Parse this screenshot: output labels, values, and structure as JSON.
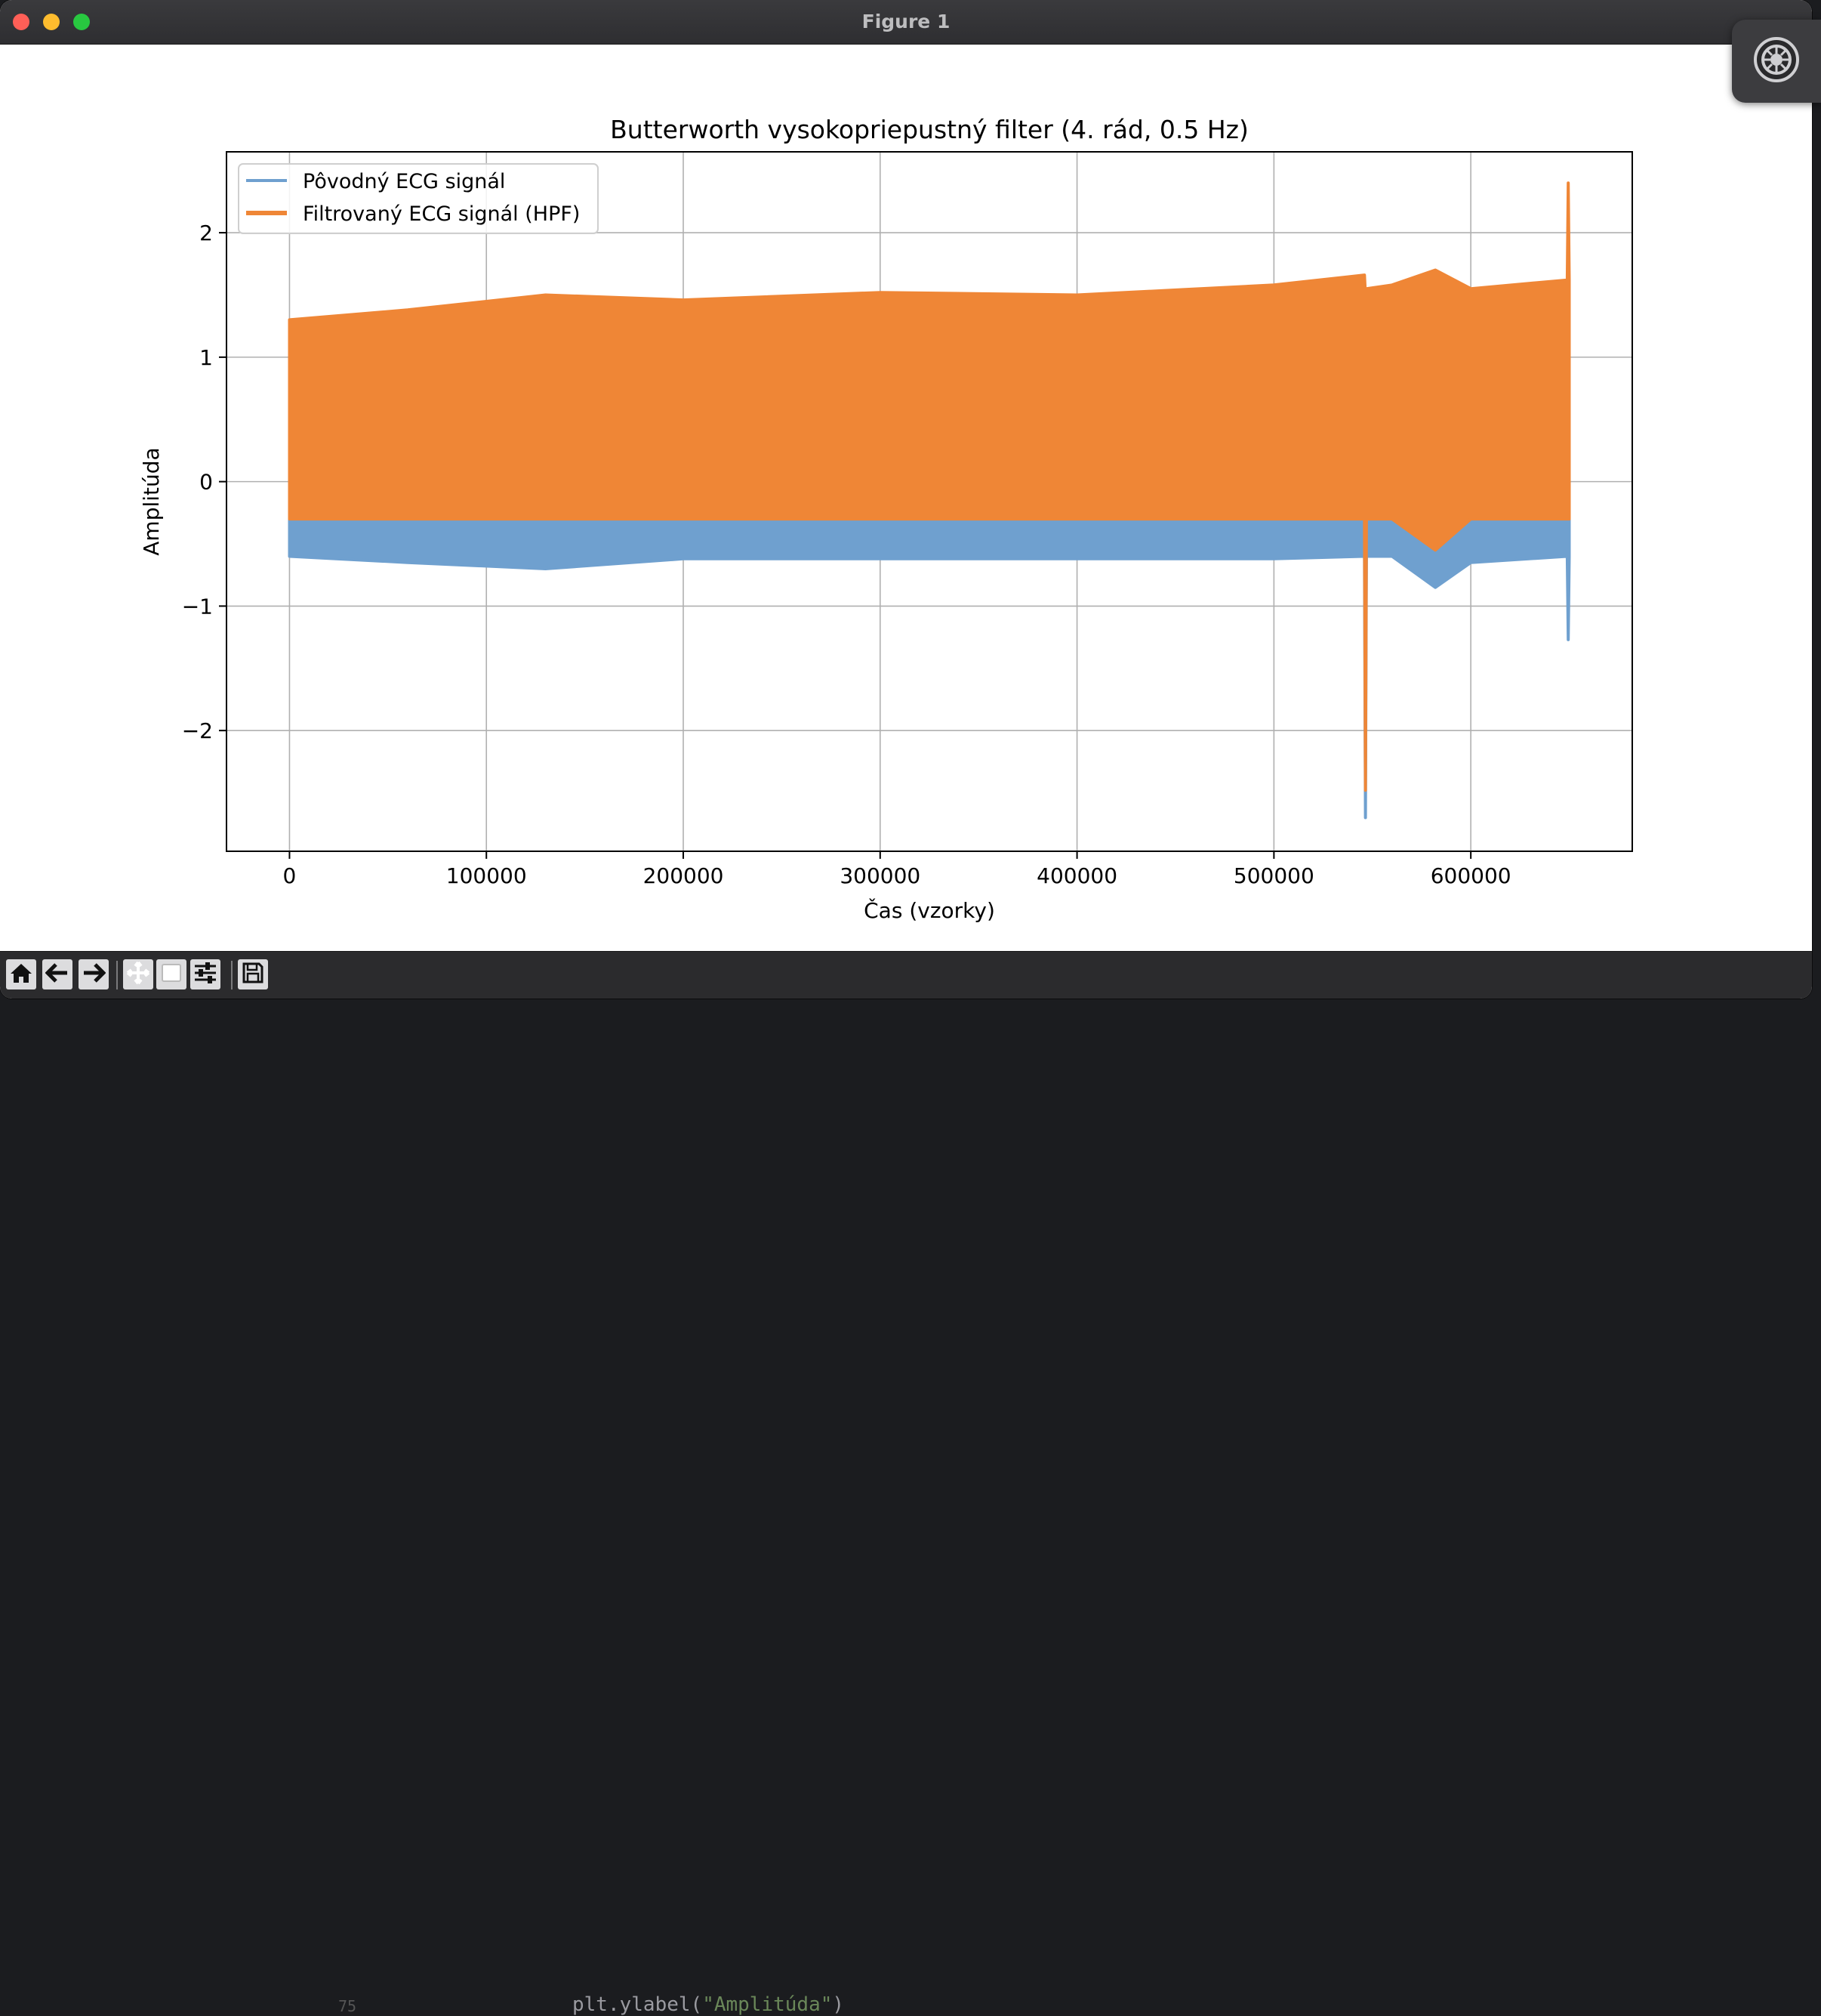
{
  "window": {
    "title": "Figure 1"
  },
  "chart_data": {
    "type": "line",
    "title": "Butterworth vysokopriepustný filter (4. rád, 0.5 Hz)",
    "xlabel": "Čas (vzorky)",
    "ylabel": "Amplitúda",
    "xlim": [
      -32000,
      682000
    ],
    "ylim": [
      -2.97,
      2.65
    ],
    "xticks": [
      0,
      100000,
      200000,
      300000,
      400000,
      500000,
      600000
    ],
    "xtick_labels": [
      "0",
      "100000",
      "200000",
      "300000",
      "400000",
      "500000",
      "600000"
    ],
    "yticks": [
      -2,
      -1,
      0,
      1,
      2
    ],
    "ytick_labels": [
      "−2",
      "−1",
      "0",
      "1",
      "2"
    ],
    "grid": true,
    "legend_position": "upper left",
    "series": [
      {
        "name": "Pôvodný ECG signál",
        "color": "#6fa0cf",
        "points_x": [
          0,
          60000,
          130000,
          200000,
          300000,
          400000,
          500000,
          546000,
          546500,
          547000,
          560000,
          582000,
          600000,
          649000,
          649500,
          650000
        ],
        "upper": [
          1.28,
          1.35,
          1.4,
          1.42,
          1.48,
          1.45,
          1.5,
          1.55,
          1.5,
          1.5,
          1.55,
          1.65,
          1.5,
          1.6,
          1.55,
          1.55
        ],
        "lower": [
          -0.6,
          -0.65,
          -0.7,
          -0.62,
          -0.62,
          -0.62,
          -0.62,
          -0.6,
          -2.7,
          -0.6,
          -0.6,
          -0.85,
          -0.65,
          -0.6,
          -1.27,
          -0.6
        ]
      },
      {
        "name": "Filtrovaný ECG signál (HPF)",
        "color": "#ef8636",
        "points_x": [
          0,
          60000,
          130000,
          200000,
          300000,
          400000,
          500000,
          546000,
          546500,
          547000,
          560000,
          582000,
          600000,
          649000,
          649500,
          650000
        ],
        "upper": [
          1.3,
          1.38,
          1.5,
          1.46,
          1.52,
          1.5,
          1.58,
          1.66,
          1.5,
          1.55,
          1.58,
          1.7,
          1.55,
          1.62,
          2.4,
          1.62
        ],
        "lower": [
          -0.3,
          -0.3,
          -0.3,
          -0.3,
          -0.3,
          -0.3,
          -0.3,
          -0.3,
          -2.48,
          -0.3,
          -0.3,
          -0.55,
          -0.3,
          -0.3,
          -0.3,
          -0.3
        ]
      }
    ]
  },
  "toolbar": {
    "buttons": [
      "home-icon",
      "back-arrow-icon",
      "forward-arrow-icon",
      "pan-icon",
      "zoom-rect-icon",
      "configure-subplots-icon",
      "save-icon"
    ]
  },
  "editor": {
    "line_number": "75",
    "code_prefix": "plt.ylabel(",
    "code_string": "\"Amplitúda\"",
    "code_suffix": ")"
  }
}
